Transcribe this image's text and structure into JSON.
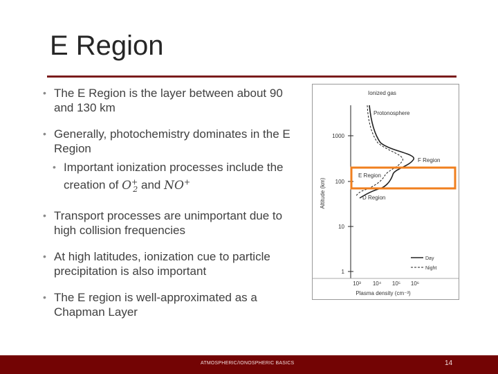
{
  "slide": {
    "title": "E Region",
    "bullets": [
      {
        "text": "The E Region is the layer between about 90 and 130 km"
      },
      {
        "text": "Generally, photochemistry dominates in the E Region"
      },
      {
        "prefix": "Important ionization processes include the creation of ",
        "math1_base": "O",
        "math1_sup": "+",
        "math1_sub": "2",
        "joiner": " and ",
        "math2_base": "NO",
        "math2_sup": "+"
      },
      {
        "text": "Transport processes are unimportant due to high collision frequencies"
      },
      {
        "text": "At high latitudes, ionization cue to particle precipitation is also important"
      },
      {
        "text": "The E region is well-approximated as a Chapman Layer"
      }
    ]
  },
  "figure": {
    "top_label": "Ionized gas",
    "protonosphere_label": "Protonosphere",
    "f_region_label": "F Region",
    "e_region_label": "E Region",
    "d_region_label": "D Region",
    "y_axis_label": "Altitude (km)",
    "x_axis_label": "Plasma density (cm⁻³)",
    "y_ticks": [
      "1000",
      "100",
      "10",
      "1"
    ],
    "x_ticks": [
      "10³",
      "10⁴",
      "10⁵",
      "10⁶"
    ],
    "legend_day": "Day",
    "legend_night": "Night",
    "highlight_color": "#f07f1e"
  },
  "footer": {
    "text": "ATMOSPHERIC/IONOSPHERIC BASICS",
    "page": "14",
    "color": "#730404"
  }
}
